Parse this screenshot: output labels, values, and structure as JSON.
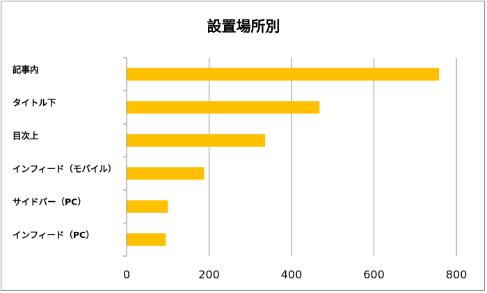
{
  "chart_data": {
    "type": "bar",
    "orientation": "horizontal",
    "title": "設置場所別",
    "categories": [
      "記事内",
      "タイトル下",
      "目次上",
      "インフィード（モバイル）",
      "サイドバー（PC）",
      "インフィード（PC）"
    ],
    "values": [
      758,
      468,
      336,
      188,
      100,
      95
    ],
    "xlim": [
      0,
      800
    ],
    "xticks": [
      0,
      200,
      400,
      600,
      800
    ],
    "xlabel": "",
    "ylabel": "",
    "grid": "vertical",
    "legend": "none",
    "bar_color": "#FFC000"
  }
}
